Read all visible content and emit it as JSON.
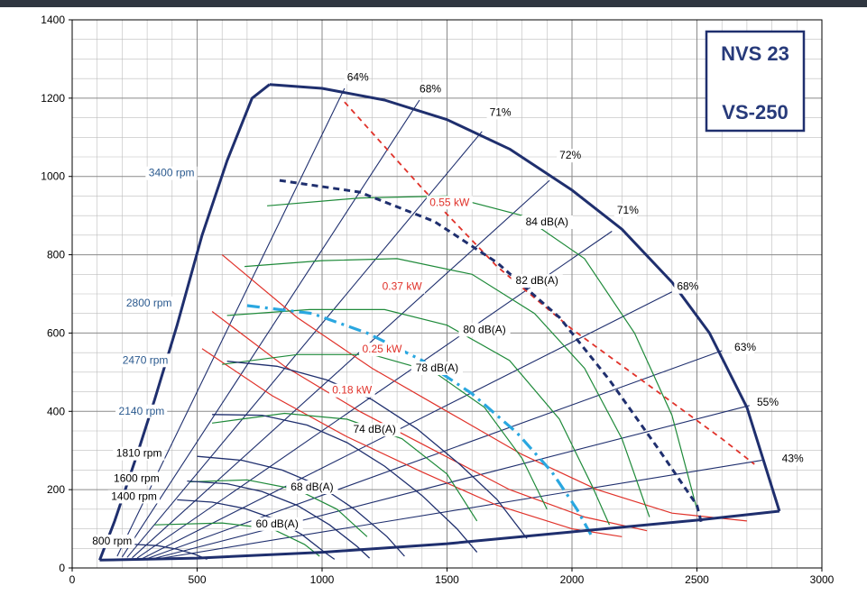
{
  "colors": {
    "navy": "#1f2f6e",
    "red": "#e0322a",
    "green": "#1f8a3a",
    "cyan": "#2aa7e0",
    "grid": "#bdbdbd"
  },
  "chart_data": {
    "type": "line",
    "title_lines": [
      "NVS 23",
      "VS-250"
    ],
    "xlabel": "",
    "ylabel": "",
    "xlim": [
      0,
      3000
    ],
    "ylim": [
      0,
      1400
    ],
    "x_ticks": [
      0,
      500,
      1000,
      1500,
      2000,
      2500,
      3000
    ],
    "y_ticks": [
      0,
      200,
      400,
      600,
      800,
      1000,
      1200,
      1400
    ],
    "grid": true,
    "envelope": {
      "left": [
        [
          110,
          20
        ],
        [
          170,
          120
        ],
        [
          260,
          290
        ],
        [
          330,
          430
        ],
        [
          420,
          620
        ],
        [
          520,
          850
        ],
        [
          620,
          1040
        ],
        [
          720,
          1200
        ],
        [
          790,
          1235
        ]
      ],
      "top": [
        [
          790,
          1235
        ],
        [
          1000,
          1225
        ],
        [
          1250,
          1195
        ],
        [
          1500,
          1145
        ],
        [
          1750,
          1070
        ],
        [
          2000,
          965
        ],
        [
          2200,
          865
        ],
        [
          2400,
          730
        ],
        [
          2550,
          600
        ],
        [
          2700,
          410
        ],
        [
          2830,
          145
        ]
      ],
      "bottom": [
        [
          110,
          20
        ],
        [
          500,
          25
        ],
        [
          1000,
          40
        ],
        [
          1500,
          62
        ],
        [
          2000,
          92
        ],
        [
          2500,
          122
        ],
        [
          2830,
          145
        ]
      ]
    },
    "speed_curves": [
      {
        "label": "3400 rpm",
        "label_pos": [
          500,
          1000
        ],
        "style": "dashed",
        "points": [
          [
            830,
            990
          ],
          [
            1150,
            960
          ],
          [
            1450,
            885
          ],
          [
            1700,
            780
          ],
          [
            1950,
            640
          ],
          [
            2150,
            480
          ],
          [
            2350,
            300
          ],
          [
            2500,
            160
          ],
          [
            2520,
            110
          ]
        ]
      },
      {
        "label": "2800 rpm",
        "label_pos": [
          410,
          668
        ],
        "style": "dashdot",
        "points": [
          [
            700,
            670
          ],
          [
            960,
            650
          ],
          [
            1180,
            600
          ],
          [
            1400,
            530
          ],
          [
            1600,
            445
          ],
          [
            1780,
            345
          ],
          [
            1920,
            245
          ],
          [
            2020,
            150
          ],
          [
            2080,
            80
          ]
        ]
      },
      {
        "label": "2470 rpm",
        "label_pos": [
          395,
          522
        ],
        "style": "solid",
        "points": [
          [
            620,
            528
          ],
          [
            820,
            515
          ],
          [
            1020,
            480
          ],
          [
            1200,
            430
          ],
          [
            1380,
            355
          ],
          [
            1550,
            265
          ],
          [
            1700,
            175
          ],
          [
            1820,
            75
          ]
        ]
      },
      {
        "label": "2140 rpm",
        "label_pos": [
          380,
          392
        ],
        "style": "solid",
        "points": [
          [
            560,
            392
          ],
          [
            760,
            390
          ],
          [
            940,
            365
          ],
          [
            1100,
            320
          ],
          [
            1250,
            260
          ],
          [
            1400,
            185
          ],
          [
            1540,
            100
          ],
          [
            1620,
            40
          ]
        ]
      },
      {
        "label": "1810 rpm",
        "label_pos": [
          370,
          284
        ],
        "style": "solid",
        "points": [
          [
            500,
            285
          ],
          [
            680,
            275
          ],
          [
            840,
            250
          ],
          [
            990,
            210
          ],
          [
            1130,
            150
          ],
          [
            1260,
            80
          ],
          [
            1330,
            30
          ]
        ]
      },
      {
        "label": "1600 rpm",
        "label_pos": [
          360,
          220
        ],
        "style": "solid",
        "points": [
          [
            460,
            222
          ],
          [
            620,
            215
          ],
          [
            760,
            195
          ],
          [
            900,
            160
          ],
          [
            1030,
            110
          ],
          [
            1140,
            55
          ],
          [
            1190,
            25
          ]
        ]
      },
      {
        "label": "1400 rpm",
        "label_pos": [
          350,
          174
        ],
        "style": "solid",
        "points": [
          [
            420,
            174
          ],
          [
            560,
            168
          ],
          [
            690,
            152
          ],
          [
            810,
            125
          ],
          [
            920,
            85
          ],
          [
            1010,
            40
          ],
          [
            1050,
            22
          ]
        ]
      },
      {
        "label": "800 rpm",
        "label_pos": [
          250,
          60
        ],
        "style": "solid",
        "points": [
          [
            250,
            60
          ],
          [
            340,
            57
          ],
          [
            420,
            48
          ],
          [
            490,
            35
          ],
          [
            540,
            22
          ]
        ]
      }
    ],
    "efficiency_lines": [
      {
        "label": "64%",
        "label_pos": [
          1100,
          1245
        ],
        "points": [
          [
            1090,
            1225
          ],
          [
            180,
            30
          ]
        ]
      },
      {
        "label": "68%",
        "label_pos": [
          1390,
          1215
        ],
        "points": [
          [
            1390,
            1195
          ],
          [
            200,
            28
          ]
        ]
      },
      {
        "label": "71%",
        "label_pos": [
          1670,
          1155
        ],
        "points": [
          [
            1640,
            1115
          ],
          [
            220,
            27
          ]
        ]
      },
      {
        "label": "72%",
        "label_pos": [
          1950,
          1045
        ],
        "points": [
          [
            1910,
            990
          ],
          [
            240,
            26
          ]
        ]
      },
      {
        "label": "71%",
        "label_pos": [
          2180,
          905
        ],
        "points": [
          [
            2160,
            860
          ],
          [
            260,
            25
          ]
        ]
      },
      {
        "label": "68%",
        "label_pos": [
          2420,
          710
        ],
        "points": [
          [
            2400,
            705
          ],
          [
            280,
            24
          ]
        ]
      },
      {
        "label": "63%",
        "label_pos": [
          2650,
          555
        ],
        "points": [
          [
            2600,
            555
          ],
          [
            300,
            24
          ]
        ]
      },
      {
        "label": "55%",
        "label_pos": [
          2740,
          415
        ],
        "points": [
          [
            2710,
            415
          ],
          [
            320,
            23
          ]
        ]
      },
      {
        "label": "43%",
        "label_pos": [
          2840,
          270
        ],
        "points": [
          [
            2760,
            275
          ],
          [
            340,
            23
          ]
        ]
      }
    ],
    "power_lines": [
      {
        "label": "0.55 kW",
        "label_pos": [
          1510,
          925
        ],
        "style": "dashed",
        "points": [
          [
            1090,
            1190
          ],
          [
            1400,
            970
          ],
          [
            1700,
            770
          ],
          [
            2000,
            610
          ],
          [
            2300,
            470
          ],
          [
            2600,
            330
          ],
          [
            2730,
            265
          ]
        ]
      },
      {
        "label": "0.37 kW",
        "label_pos": [
          1320,
          710
        ],
        "style": "solid",
        "points": [
          [
            600,
            800
          ],
          [
            900,
            640
          ],
          [
            1200,
            510
          ],
          [
            1500,
            400
          ],
          [
            1800,
            290
          ],
          [
            2100,
            200
          ],
          [
            2400,
            140
          ],
          [
            2700,
            120
          ]
        ]
      },
      {
        "label": "0.25 kW",
        "label_pos": [
          1240,
          550
        ],
        "style": "solid",
        "points": [
          [
            560,
            655
          ],
          [
            850,
            515
          ],
          [
            1150,
            400
          ],
          [
            1450,
            300
          ],
          [
            1750,
            200
          ],
          [
            2050,
            130
          ],
          [
            2300,
            95
          ]
        ]
      },
      {
        "label": "0.18 kW",
        "label_pos": [
          1120,
          445
        ],
        "style": "solid",
        "points": [
          [
            520,
            560
          ],
          [
            800,
            440
          ],
          [
            1100,
            335
          ],
          [
            1400,
            245
          ],
          [
            1700,
            160
          ],
          [
            2000,
            100
          ],
          [
            2200,
            80
          ]
        ]
      }
    ],
    "noise_lines": [
      {
        "label": "84 dB(A)",
        "label_pos": [
          1900,
          875
        ],
        "points": [
          [
            780,
            925
          ],
          [
            1150,
            945
          ],
          [
            1500,
            950
          ],
          [
            1800,
            900
          ],
          [
            2050,
            790
          ],
          [
            2250,
            600
          ],
          [
            2400,
            390
          ],
          [
            2500,
            150
          ]
        ]
      },
      {
        "label": "82 dB(A)",
        "label_pos": [
          1860,
          725
        ],
        "points": [
          [
            690,
            770
          ],
          [
            1000,
            785
          ],
          [
            1300,
            790
          ],
          [
            1600,
            750
          ],
          [
            1850,
            650
          ],
          [
            2050,
            510
          ],
          [
            2200,
            330
          ],
          [
            2310,
            130
          ]
        ]
      },
      {
        "label": "80 dB(A)",
        "label_pos": [
          1650,
          600
        ],
        "points": [
          [
            620,
            645
          ],
          [
            950,
            660
          ],
          [
            1250,
            660
          ],
          [
            1500,
            620
          ],
          [
            1750,
            530
          ],
          [
            1950,
            380
          ],
          [
            2080,
            210
          ],
          [
            2150,
            110
          ]
        ]
      },
      {
        "label": "78 dB(A)",
        "label_pos": [
          1460,
          502
        ],
        "points": [
          [
            600,
            520
          ],
          [
            900,
            545
          ],
          [
            1200,
            545
          ],
          [
            1450,
            500
          ],
          [
            1650,
            410
          ],
          [
            1800,
            280
          ],
          [
            1900,
            150
          ]
        ]
      },
      {
        "label": "74 dB(A)",
        "label_pos": [
          1210,
          345
        ],
        "points": [
          [
            560,
            370
          ],
          [
            850,
            395
          ],
          [
            1100,
            380
          ],
          [
            1320,
            330
          ],
          [
            1500,
            240
          ],
          [
            1620,
            120
          ]
        ]
      },
      {
        "label": "68 dB(A)",
        "label_pos": [
          960,
          198
        ],
        "points": [
          [
            470,
            220
          ],
          [
            700,
            225
          ],
          [
            900,
            200
          ],
          [
            1060,
            150
          ],
          [
            1180,
            80
          ]
        ]
      },
      {
        "label": "60 dB(A)",
        "label_pos": [
          820,
          104
        ],
        "points": [
          [
            330,
            110
          ],
          [
            600,
            115
          ],
          [
            800,
            100
          ],
          [
            930,
            60
          ],
          [
            990,
            30
          ]
        ]
      }
    ]
  }
}
